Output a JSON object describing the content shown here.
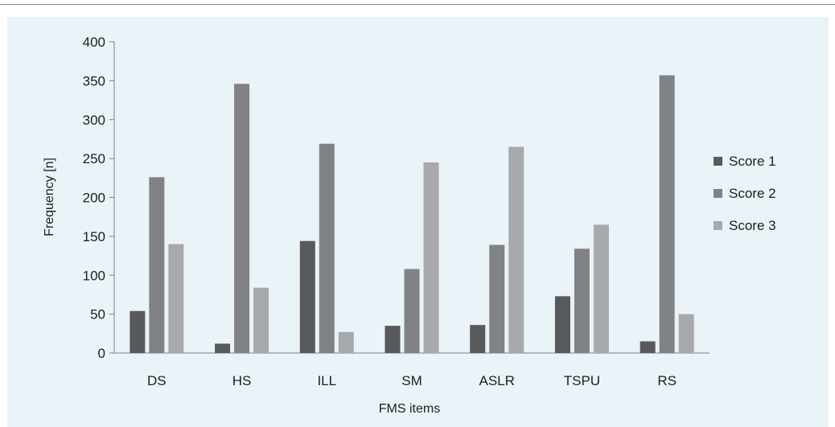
{
  "chart_data": {
    "type": "bar",
    "categories": [
      "DS",
      "HS",
      "ILL",
      "SM",
      "ASLR",
      "TSPU",
      "RS"
    ],
    "series": [
      {
        "name": "Score 1",
        "color": "#58595b",
        "values": [
          54,
          12,
          144,
          35,
          36,
          73,
          15
        ]
      },
      {
        "name": "Score 2",
        "color": "#808285",
        "values": [
          226,
          346,
          269,
          108,
          139,
          134,
          357
        ]
      },
      {
        "name": "Score 3",
        "color": "#a7a9ac",
        "values": [
          140,
          84,
          27,
          245,
          265,
          165,
          50
        ]
      }
    ],
    "xlabel": "FMS items",
    "ylabel": "Frequency [n]",
    "ylim": [
      0,
      400
    ],
    "yticks": [
      0,
      50,
      100,
      150,
      200,
      250,
      300,
      350,
      400
    ],
    "grid": false,
    "legend_position": "right"
  }
}
